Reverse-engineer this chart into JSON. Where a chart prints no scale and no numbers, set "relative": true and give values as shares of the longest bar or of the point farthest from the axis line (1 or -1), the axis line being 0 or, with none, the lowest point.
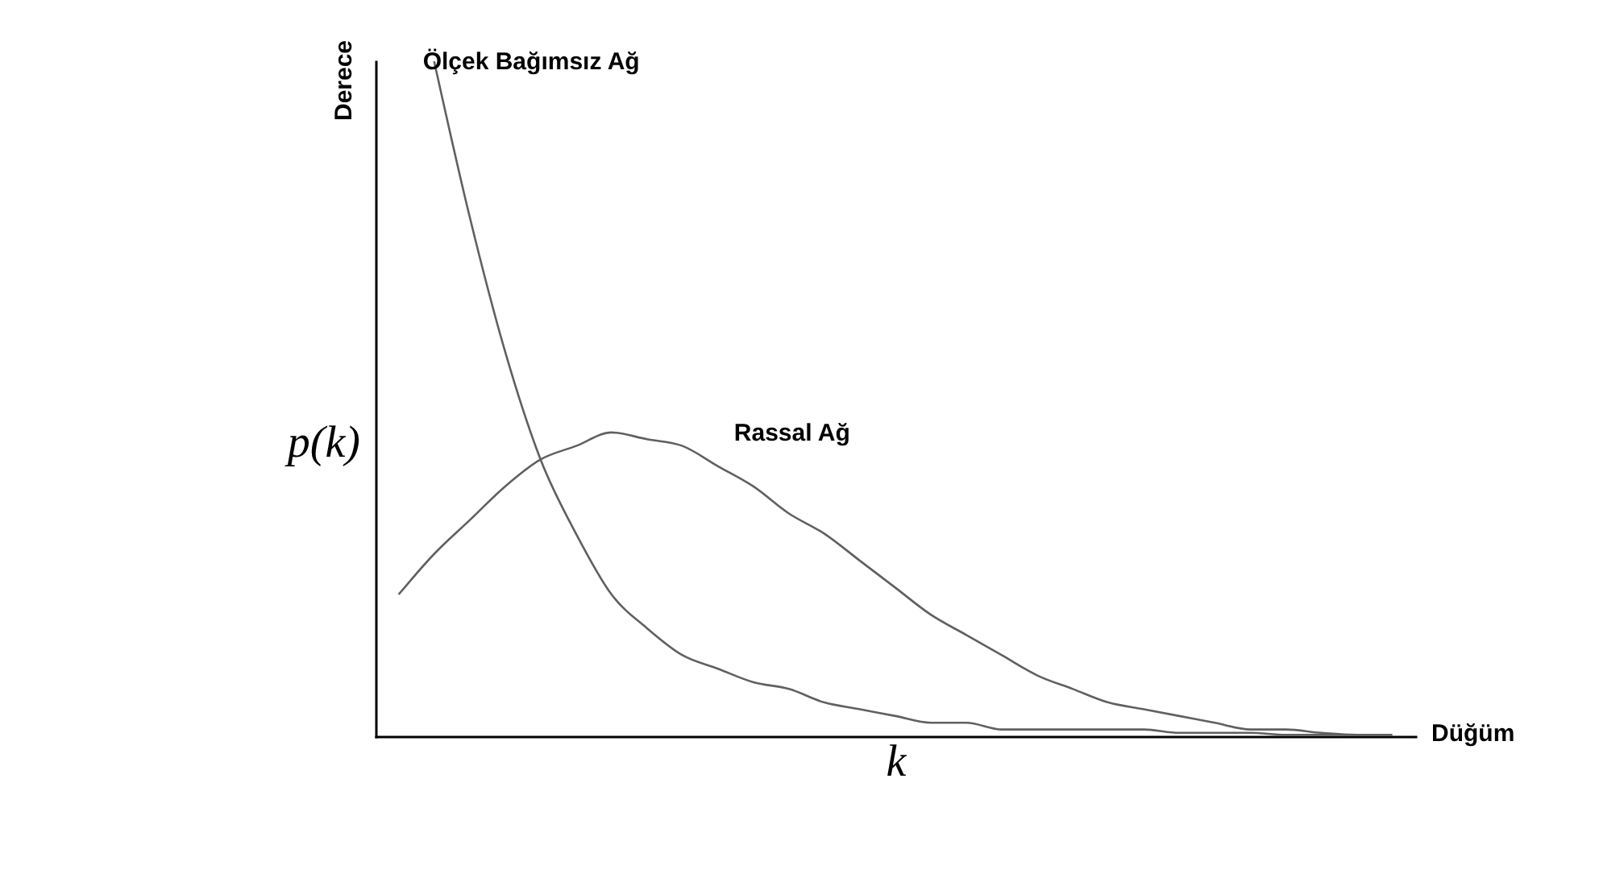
{
  "chart_data": {
    "type": "line",
    "relative": true,
    "xlabel": "k",
    "ylabel": "p(k)",
    "annotations": [
      "Derece",
      "Düğüm"
    ],
    "categories": [
      null,
      null,
      null,
      null,
      null,
      null,
      null,
      null,
      null,
      null,
      null,
      null,
      null,
      null,
      null,
      null,
      null,
      null,
      null,
      null,
      null,
      null,
      null,
      null,
      null,
      null,
      null,
      null,
      null
    ],
    "series": [
      {
        "name": "Ölçek Bağımsız Ağ",
        "color": "#606060",
        "values": [
          null,
          1.0,
          0.77,
          0.57,
          0.41,
          0.3,
          0.21,
          0.16,
          0.12,
          0.1,
          0.08,
          0.07,
          0.05,
          0.04,
          0.03,
          0.02,
          0.02,
          0.01,
          0.01,
          0.01,
          0.01,
          0.01,
          0.005,
          0.005,
          0.005,
          0.002,
          0.002,
          0.002,
          0.002
        ]
      },
      {
        "name": "Rassal Ağ",
        "color": "#606060",
        "values": [
          0.21,
          0.27,
          0.32,
          0.37,
          0.41,
          0.43,
          0.45,
          0.44,
          0.43,
          0.4,
          0.37,
          0.33,
          0.3,
          0.26,
          0.22,
          0.18,
          0.15,
          0.12,
          0.09,
          0.07,
          0.05,
          0.04,
          0.03,
          0.02,
          0.01,
          0.01,
          0.005,
          0.002,
          0.002
        ]
      }
    ],
    "grid": false,
    "legend": false
  }
}
